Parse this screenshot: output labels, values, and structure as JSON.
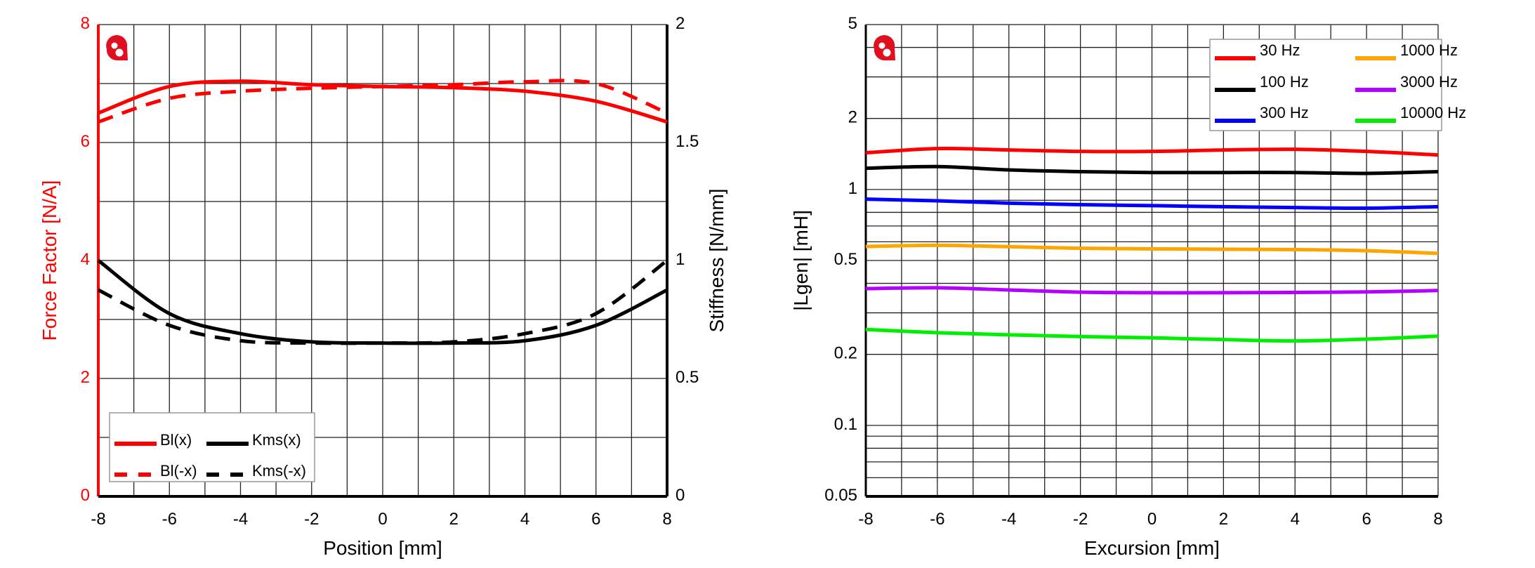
{
  "chart_data": [
    {
      "type": "line",
      "xlabel": "Position [mm]",
      "ylabel": "Force Factor [N/A]",
      "y2label": "Stiffness [N/mm]",
      "xlim": [
        -8,
        8
      ],
      "ylim": [
        0,
        8
      ],
      "y2lim": [
        0,
        2
      ],
      "xticks": [
        "-8",
        "-6",
        "-4",
        "-2",
        "0",
        "2",
        "4",
        "6",
        "8"
      ],
      "yticks": [
        "0",
        "2",
        "4",
        "6",
        "8"
      ],
      "y2ticks": [
        "0",
        "0.5",
        "1",
        "1.5",
        "2"
      ],
      "grid": true,
      "legend_position": "bottom-left",
      "colors": {
        "left_axis": "#ff0000",
        "right_axis": "#000000"
      },
      "x": [
        -8,
        -6,
        -4,
        -2,
        0,
        2,
        4,
        6,
        8
      ],
      "series": [
        {
          "name": "Bl(x)",
          "axis": "left",
          "color": "#ff0000",
          "style": "solid",
          "values": [
            6.5,
            6.95,
            7.04,
            6.98,
            6.95,
            6.93,
            6.87,
            6.7,
            6.35
          ]
        },
        {
          "name": "Bl(-x)",
          "axis": "left",
          "color": "#ff0000",
          "style": "dashed",
          "values": [
            6.35,
            6.75,
            6.87,
            6.92,
            6.95,
            6.98,
            7.03,
            7.0,
            6.5
          ]
        },
        {
          "name": "Kms(x)",
          "axis": "right",
          "color": "#000000",
          "style": "solid",
          "values": [
            1.0,
            0.775,
            0.69,
            0.655,
            0.65,
            0.65,
            0.66,
            0.725,
            0.875
          ]
        },
        {
          "name": "Kms(-x)",
          "axis": "right",
          "color": "#000000",
          "style": "dashed",
          "values": [
            0.875,
            0.725,
            0.66,
            0.65,
            0.65,
            0.655,
            0.69,
            0.775,
            1.0
          ]
        }
      ]
    },
    {
      "type": "line",
      "xlabel": "Excursion [mm]",
      "ylabel": "|Lgen| [mH]",
      "xlim": [
        -8,
        8
      ],
      "ylim": [
        0.05,
        5
      ],
      "yscale": "log",
      "xticks": [
        "-8",
        "-6",
        "-4",
        "-2",
        "0",
        "2",
        "4",
        "6",
        "8"
      ],
      "yticks": [
        "0.05",
        "0.1",
        "0.2",
        "0.5",
        "1",
        "2",
        "5"
      ],
      "grid": true,
      "legend_position": "top-right",
      "x": [
        -8,
        -6,
        -4,
        -2,
        0,
        2,
        4,
        6,
        8
      ],
      "series": [
        {
          "name": "30 Hz",
          "color": "#ff0000",
          "values": [
            1.43,
            1.49,
            1.47,
            1.45,
            1.45,
            1.47,
            1.48,
            1.45,
            1.4
          ]
        },
        {
          "name": "100 Hz",
          "color": "#000000",
          "values": [
            1.23,
            1.25,
            1.21,
            1.19,
            1.18,
            1.18,
            1.18,
            1.17,
            1.19
          ]
        },
        {
          "name": "300 Hz",
          "color": "#0000ff",
          "values": [
            0.91,
            0.895,
            0.875,
            0.862,
            0.854,
            0.845,
            0.838,
            0.833,
            0.845
          ]
        },
        {
          "name": "1000 Hz",
          "color": "#ffa500",
          "values": [
            0.573,
            0.58,
            0.572,
            0.563,
            0.56,
            0.558,
            0.556,
            0.55,
            0.536
          ]
        },
        {
          "name": "3000 Hz",
          "color": "#b400ff",
          "values": [
            0.38,
            0.383,
            0.375,
            0.367,
            0.365,
            0.365,
            0.366,
            0.368,
            0.373
          ]
        },
        {
          "name": "10000 Hz",
          "color": "#00ee00",
          "values": [
            0.255,
            0.247,
            0.242,
            0.238,
            0.235,
            0.231,
            0.228,
            0.232,
            0.239
          ]
        }
      ]
    }
  ]
}
